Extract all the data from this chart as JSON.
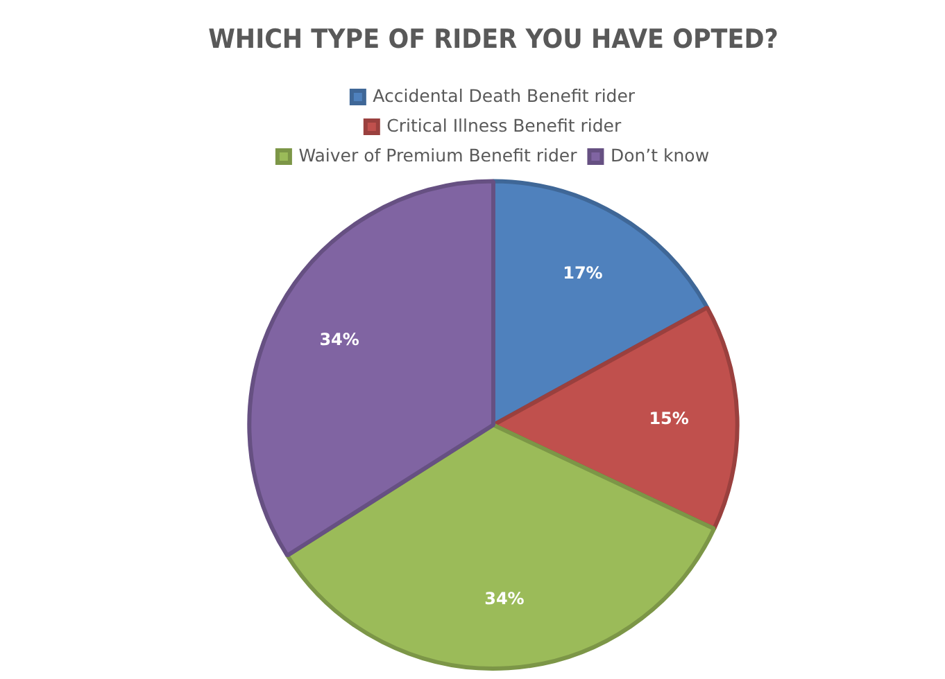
{
  "chart_data": {
    "type": "pie",
    "title": "WHICH TYPE OF RIDER YOU HAVE OPTED?",
    "categories": [
      "Accidental Death Benefit rider",
      "Critical Illness Benefit rider",
      "Waiver of Premium Benefit rider",
      "Don’t know"
    ],
    "values": [
      17,
      15,
      34,
      34
    ],
    "value_labels": [
      "17%",
      "15%",
      "34%",
      "34%"
    ],
    "colors": [
      "#4f81bd",
      "#c0504d",
      "#9bbb59",
      "#8064a2"
    ],
    "legend": "top"
  }
}
